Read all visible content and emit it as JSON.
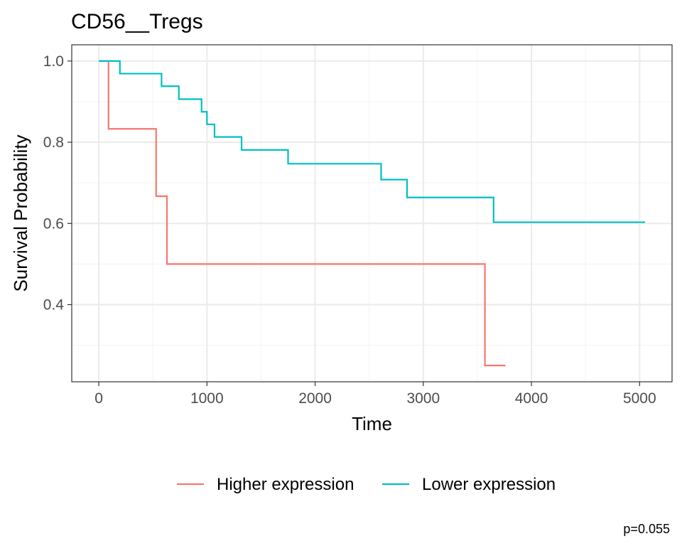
{
  "chart_data": {
    "type": "line",
    "title": "CD56__Tregs",
    "xlabel": "Time",
    "ylabel": "Survival Probability",
    "xlim": [
      -250,
      5300
    ],
    "ylim": [
      0.21,
      1.04
    ],
    "x_ticks": [
      0,
      1000,
      2000,
      3000,
      4000,
      5000
    ],
    "x_tick_labels": [
      "0",
      "1000",
      "2000",
      "3000",
      "4000",
      "5000"
    ],
    "y_ticks": [
      0.4,
      0.6,
      0.8,
      1.0
    ],
    "y_tick_labels": [
      "0.4",
      "0.6",
      "0.8",
      "1.0"
    ],
    "grid": true,
    "legend_position": "bottom",
    "annotation": "p=0.055",
    "series": [
      {
        "name": "Higher expression",
        "color": "#F8766D",
        "x": [
          0,
          90,
          530,
          630,
          3570,
          3760
        ],
        "y": [
          1.0,
          0.833,
          0.667,
          0.5,
          0.25,
          0.25
        ]
      },
      {
        "name": "Lower expression",
        "color": "#00BFC4",
        "x": [
          0,
          195,
          580,
          740,
          950,
          1000,
          1070,
          1320,
          1750,
          2610,
          2850,
          3650,
          5050
        ],
        "y": [
          1.0,
          0.969,
          0.938,
          0.906,
          0.875,
          0.844,
          0.813,
          0.781,
          0.747,
          0.708,
          0.664,
          0.603,
          0.603
        ]
      }
    ]
  }
}
